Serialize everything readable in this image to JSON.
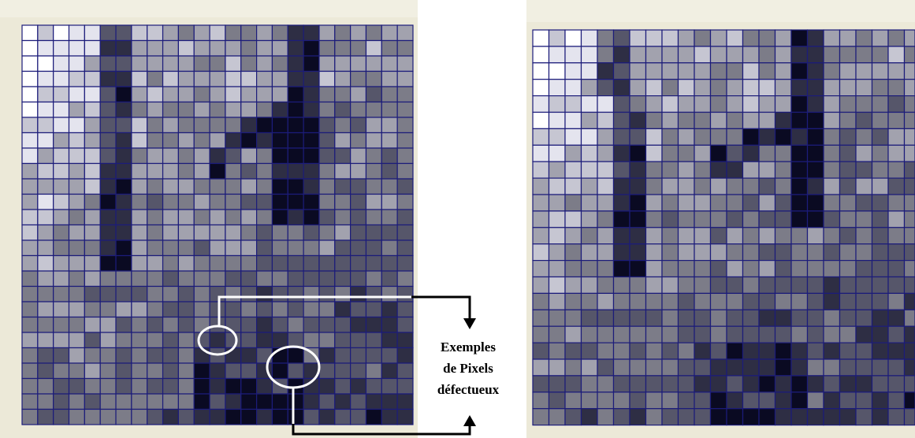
{
  "annotation": {
    "lines": [
      "Exemples",
      "de Pixels",
      "défectueux"
    ]
  }
}
